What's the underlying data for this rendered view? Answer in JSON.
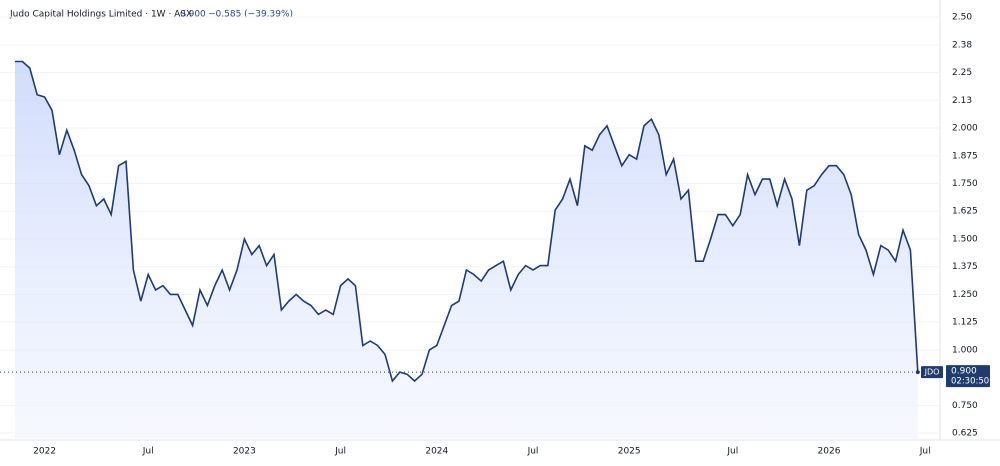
{
  "chart_data": {
    "type": "area",
    "title": "Judo Capital Holdings Limited · 1W · ASX",
    "last": {
      "value": 0.9,
      "label": "0.900"
    },
    "change": "−0.585 (−39.39%)",
    "price_tag": {
      "symbol": "JDO",
      "price": {
        "value": 0.9,
        "label": "0.900"
      },
      "time": "02:30:50"
    },
    "color": "#1f3b6f",
    "categories": [
      null,
      null,
      null,
      null,
      "2022",
      null,
      null,
      null,
      null,
      null,
      null,
      null,
      null,
      null,
      null,
      null,
      null,
      null,
      "Jul",
      null,
      null,
      null,
      null,
      null,
      null,
      null,
      null,
      null,
      null,
      null,
      null,
      "2023",
      null,
      null,
      null,
      null,
      null,
      null,
      null,
      null,
      null,
      null,
      null,
      null,
      "Jul",
      null,
      null,
      null,
      null,
      null,
      null,
      null,
      null,
      null,
      null,
      null,
      null,
      "2024",
      null,
      null,
      null,
      null,
      null,
      null,
      null,
      null,
      null,
      null,
      null,
      null,
      "Jul",
      null,
      null,
      null,
      null,
      null,
      null,
      null,
      null,
      null,
      null,
      null,
      null,
      "2025",
      null,
      null,
      null,
      null,
      null,
      null,
      null,
      null,
      null,
      null,
      null,
      null,
      null,
      "Jul",
      null,
      null,
      null,
      null,
      null,
      null,
      null,
      null,
      null,
      null,
      null,
      null,
      "2026",
      null,
      null,
      null,
      null,
      null,
      null,
      null,
      null,
      null,
      null,
      null,
      null,
      "Jul"
    ],
    "values": [
      2.3,
      2.3,
      2.27,
      2.15,
      2.14,
      2.08,
      1.88,
      1.99,
      1.9,
      1.79,
      1.74,
      1.65,
      1.68,
      1.61,
      1.83,
      1.85,
      1.36,
      1.22,
      1.34,
      1.27,
      1.29,
      1.25,
      1.25,
      1.18,
      1.11,
      1.27,
      1.2,
      1.29,
      1.36,
      1.27,
      1.36,
      1.5,
      1.43,
      1.47,
      1.38,
      1.43,
      1.18,
      1.22,
      1.25,
      1.22,
      1.2,
      1.16,
      1.18,
      1.16,
      1.29,
      1.32,
      1.29,
      1.02,
      1.04,
      1.02,
      0.98,
      0.86,
      0.9,
      0.89,
      0.86,
      0.89,
      1.0,
      1.02,
      1.11,
      1.2,
      1.22,
      1.36,
      1.34,
      1.31,
      1.36,
      1.38,
      1.4,
      1.27,
      1.34,
      1.38,
      1.36,
      1.38,
      1.38,
      1.63,
      1.68,
      1.77,
      1.65,
      1.92,
      1.9,
      1.97,
      2.01,
      1.92,
      1.83,
      1.88,
      1.86,
      2.01,
      2.04,
      1.97,
      1.79,
      1.86,
      1.68,
      1.72,
      1.4,
      1.4,
      1.5,
      1.61,
      1.61,
      1.56,
      1.61,
      1.79,
      1.7,
      1.77,
      1.77,
      1.65,
      1.77,
      1.68,
      1.47,
      1.72,
      1.74,
      1.79,
      1.83,
      1.83,
      1.79,
      1.7,
      1.52,
      1.45,
      1.34,
      1.47,
      1.45,
      1.4,
      1.54,
      1.45,
      0.9,
      null
    ],
    "ylim": [
      0.594,
      2.577
    ],
    "yticks": [
      {
        "value": 2.5,
        "label": "2.50"
      },
      {
        "value": 2.375,
        "label": "2.38"
      },
      {
        "value": 2.25,
        "label": "2.25"
      },
      {
        "value": 2.125,
        "label": "2.13"
      },
      {
        "value": 2.0,
        "label": "2.000"
      },
      {
        "value": 1.875,
        "label": "1.875"
      },
      {
        "value": 1.75,
        "label": "1.750"
      },
      {
        "value": 1.625,
        "label": "1.625"
      },
      {
        "value": 1.5,
        "label": "1.500"
      },
      {
        "value": 1.375,
        "label": "1.375"
      },
      {
        "value": 1.25,
        "label": "1.250"
      },
      {
        "value": 1.125,
        "label": "1.125"
      },
      {
        "value": 1.0,
        "label": "1.000"
      },
      {
        "value": 0.75,
        "label": "0.750"
      },
      {
        "value": 0.625,
        "label": "0.625"
      }
    ],
    "grid": true
  }
}
